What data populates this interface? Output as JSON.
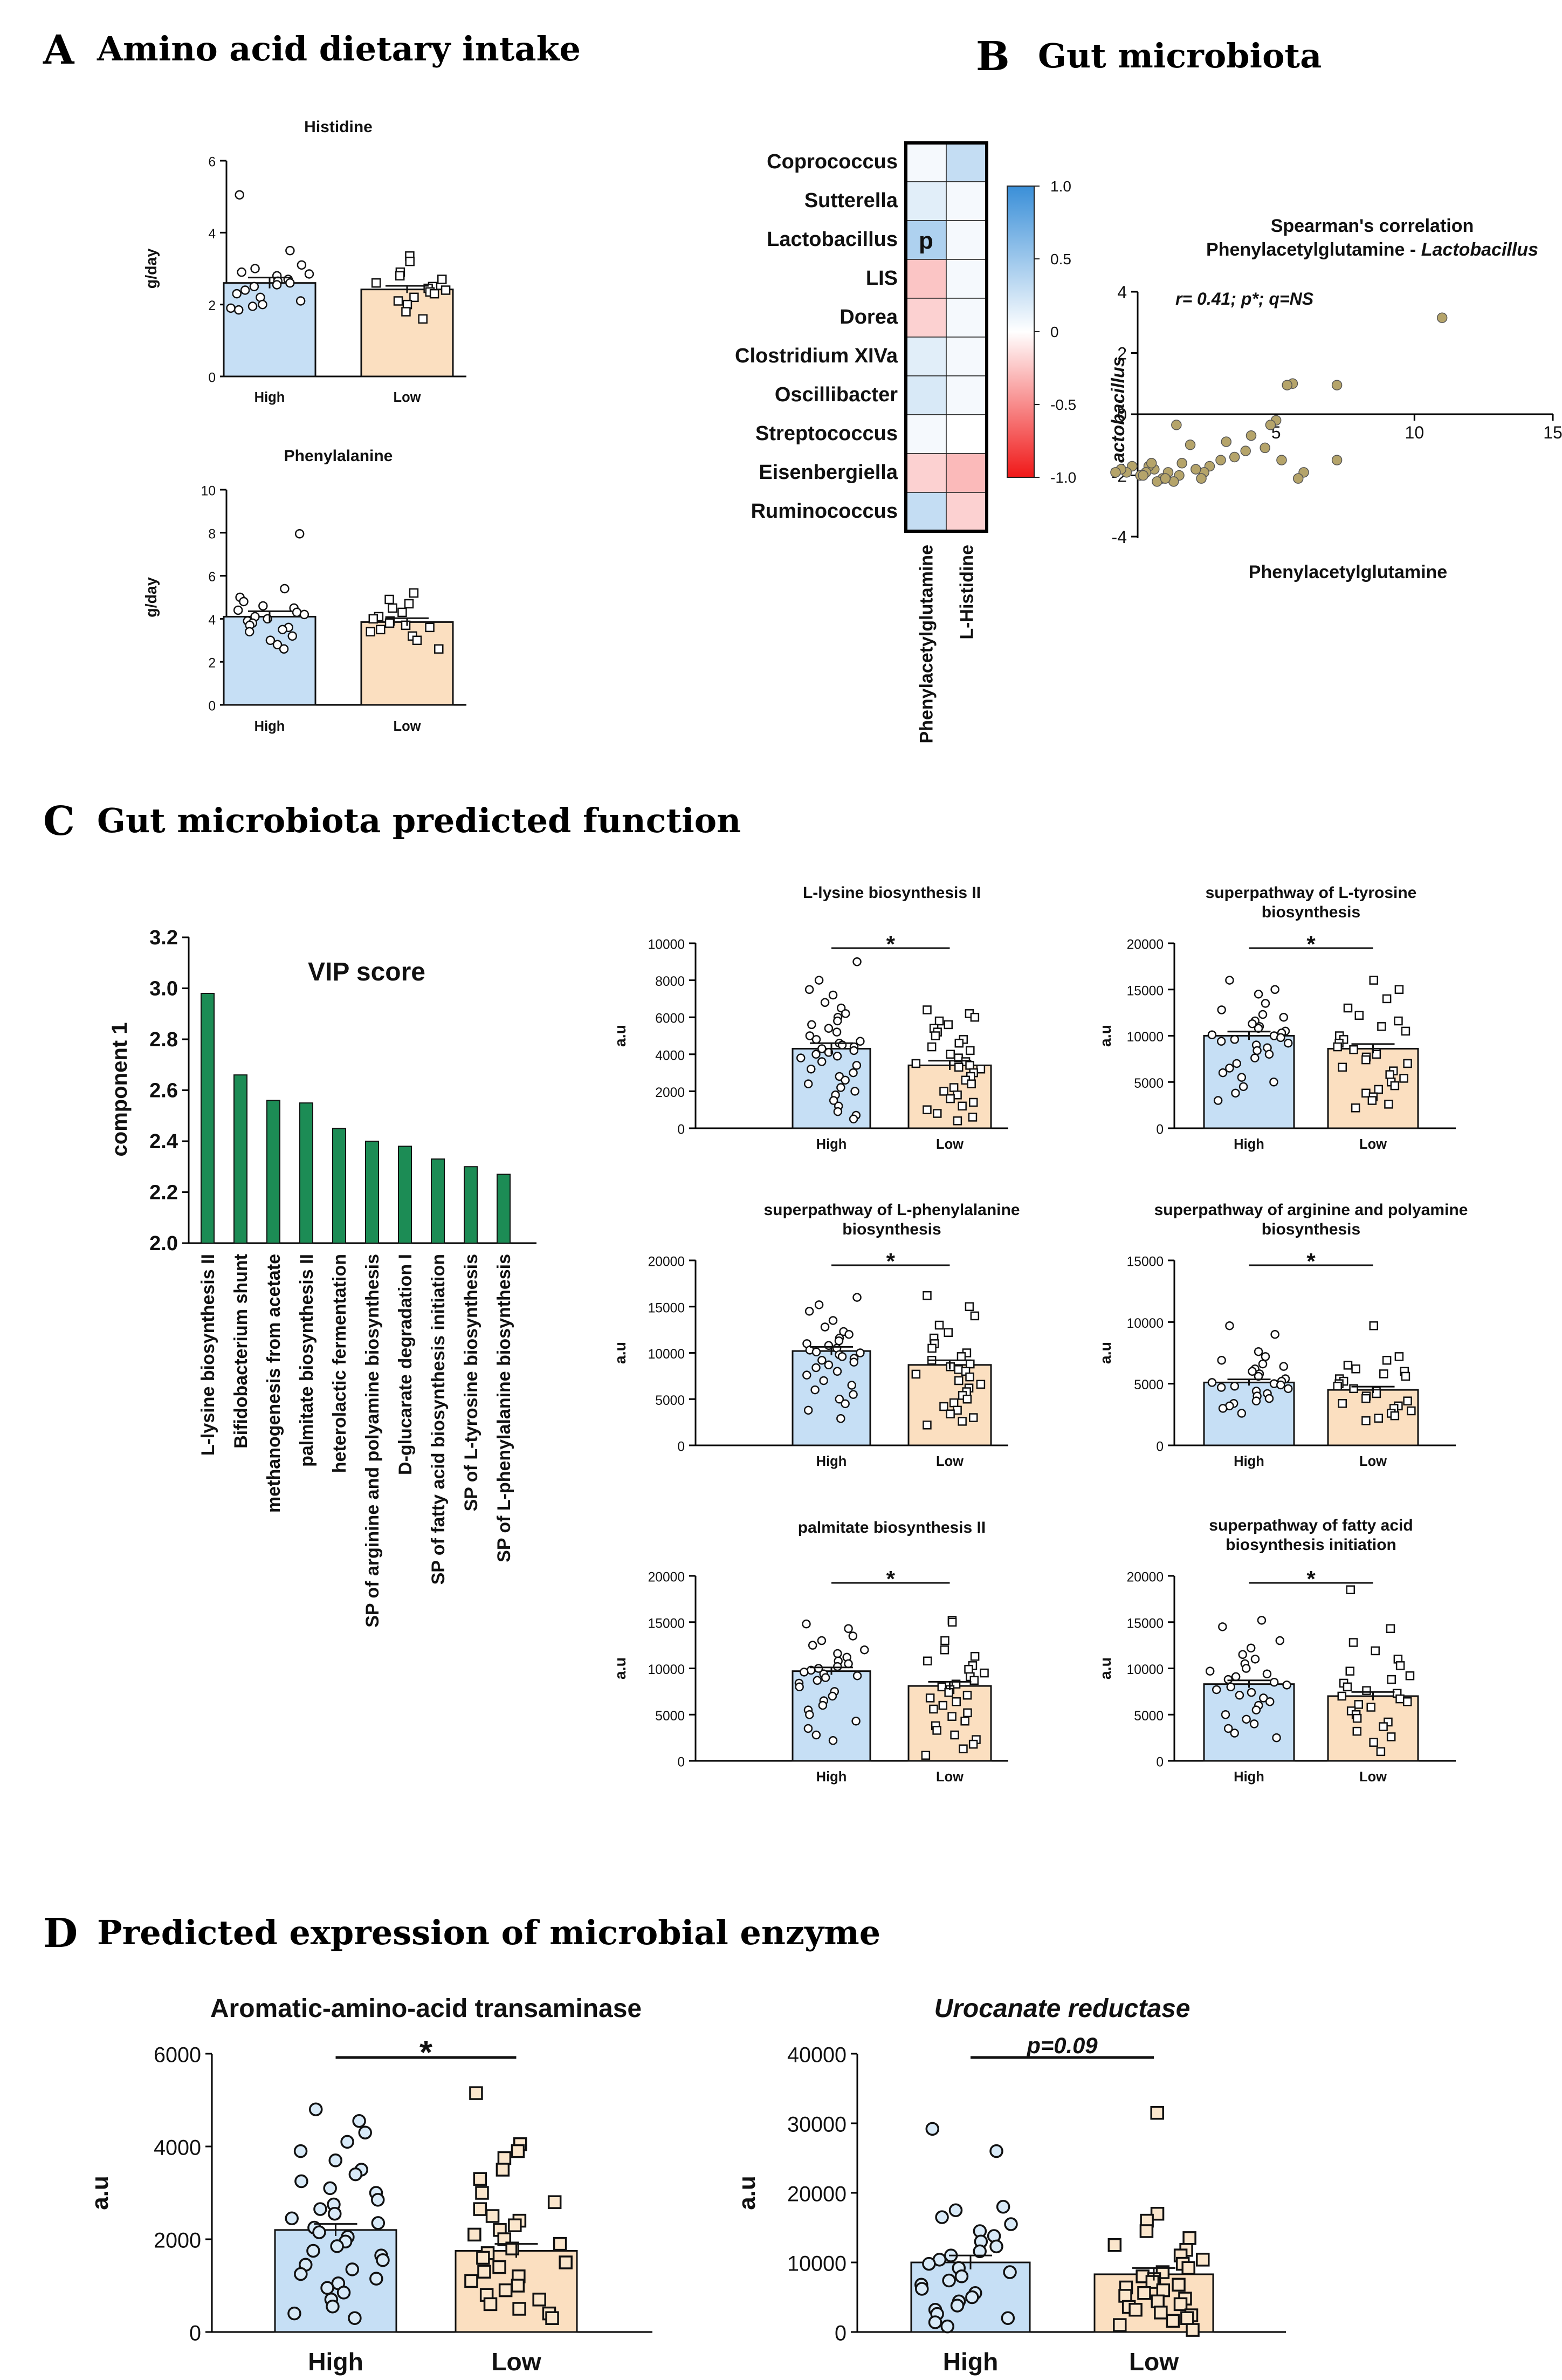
{
  "panels": {
    "A": {
      "letter": "A",
      "title": "Amino acid dietary intake"
    },
    "B": {
      "letter": "B",
      "title": "Gut microbiota"
    },
    "C": {
      "letter": "C",
      "title": "Gut microbiota predicted function"
    },
    "D": {
      "letter": "D",
      "title": "Predicted expression of microbial enzyme"
    }
  },
  "colors": {
    "high": "#c6dff5",
    "low": "#fbdfc0",
    "vip_bar": "#1c8c55",
    "scatter_point": "#b5a46a",
    "heat_pos": "#3a8fd8",
    "heat_neg": "#f01818"
  },
  "chart_data": [
    {
      "id": "histidine",
      "type": "bar",
      "title": "Histidine",
      "categories": [
        "High",
        "Low"
      ],
      "values": [
        2.6,
        2.42
      ],
      "sem": [
        0.15,
        0.1
      ],
      "ylabel": "g/day",
      "ylim": [
        0,
        6
      ],
      "yticks": [
        "0",
        "2",
        "4",
        "6"
      ],
      "points": {
        "High": [
          5.05,
          3.5,
          3.1,
          3.0,
          2.9,
          2.85,
          2.8,
          2.7,
          2.65,
          2.6,
          2.55,
          2.5,
          2.4,
          2.3,
          2.2,
          2.1,
          2.0,
          1.95,
          1.9,
          1.85
        ],
        "Low": [
          3.35,
          3.2,
          2.9,
          2.8,
          2.7,
          2.6,
          2.5,
          2.45,
          2.4,
          2.35,
          2.3,
          2.2,
          2.1,
          2.0,
          1.8,
          1.6
        ]
      }
    },
    {
      "id": "phenylalanine",
      "type": "bar",
      "title": "Phenylalanine",
      "categories": [
        "High",
        "Low"
      ],
      "values": [
        4.1,
        3.85
      ],
      "sem": [
        0.25,
        0.18
      ],
      "ylabel": "g/day",
      "ylim": [
        0,
        10
      ],
      "yticks": [
        "0",
        "2",
        "4",
        "6",
        "8",
        "10"
      ],
      "points": {
        "High": [
          7.95,
          5.4,
          5.0,
          4.8,
          4.6,
          4.5,
          4.4,
          4.3,
          4.2,
          4.1,
          4.0,
          3.9,
          3.8,
          3.7,
          3.6,
          3.5,
          3.4,
          3.2,
          3.0,
          2.8,
          2.6
        ],
        "Low": [
          5.2,
          4.9,
          4.7,
          4.5,
          4.3,
          4.1,
          4.0,
          3.9,
          3.8,
          3.7,
          3.6,
          3.5,
          3.4,
          3.2,
          3.0,
          2.6
        ]
      }
    },
    {
      "id": "heatmap",
      "type": "heatmap",
      "rows": [
        "Coprococcus",
        "Sutterella",
        "Lactobacillus",
        "LIS",
        "Dorea",
        "Clostridium  XIVa",
        "Oscillibacter",
        "Streptococcus",
        "Eisenbergiella",
        "Ruminococcus"
      ],
      "columns": [
        "Phenylacetylglutamine",
        "L-Histidine"
      ],
      "values": [
        [
          0.05,
          0.3
        ],
        [
          0.15,
          0.05
        ],
        [
          0.41,
          0.05
        ],
        [
          -0.25,
          0.05
        ],
        [
          -0.2,
          0.05
        ],
        [
          0.15,
          0.05
        ],
        [
          0.2,
          0.05
        ],
        [
          0.05,
          0.0
        ],
        [
          -0.2,
          -0.3
        ],
        [
          0.3,
          -0.2
        ]
      ],
      "annotation": {
        "row": 2,
        "col": 0,
        "text": "p"
      },
      "colorbar": {
        "range": [
          -1.0,
          1.0
        ],
        "ticks": [
          "1.0",
          "0.5",
          "0",
          "-0.5",
          "-1.0"
        ]
      }
    },
    {
      "id": "spearman",
      "type": "scatter",
      "title": "Spearman's correlation",
      "subtitle_prefix": "Phenylacetylglutamine - ",
      "subtitle_italic": "Lactobacillus",
      "annotation": "r= 0.41; p*; q=NS",
      "xlabel": "Phenylacetylglutamine",
      "ylabel": "Lactobacillus",
      "xlim": [
        -1,
        15
      ],
      "ylim": [
        -4,
        4
      ],
      "xticks": [
        "5",
        "10",
        "15"
      ],
      "yticks": [
        "4",
        "2",
        "0",
        "-2",
        "-4"
      ],
      "x": [
        11.0,
        7.2,
        5.6,
        5.4,
        5.0,
        4.8,
        7.2,
        6.0,
        5.8,
        5.2,
        4.6,
        4.1,
        3.9,
        3.5,
        3.2,
        3.0,
        2.6,
        2.4,
        2.3,
        2.1,
        1.9,
        1.6,
        1.5,
        1.3,
        1.1,
        0.9,
        0.7,
        0.6,
        0.4,
        0.3,
        0.1,
        -0.2,
        -0.4,
        -0.6,
        -0.8,
        0.5,
        1.0,
        1.4,
        0.2
      ],
      "y": [
        3.15,
        0.95,
        1.0,
        0.95,
        -0.2,
        -0.35,
        -1.5,
        -1.9,
        -2.1,
        -1.5,
        -1.1,
        -0.7,
        -1.2,
        -1.4,
        -0.9,
        -1.5,
        -1.7,
        -1.9,
        -2.1,
        -1.8,
        -1.0,
        -1.6,
        -2.0,
        -2.2,
        -1.9,
        -2.1,
        -2.2,
        -1.8,
        -1.7,
        -1.9,
        -2.0,
        -1.7,
        -1.9,
        -1.8,
        -1.9,
        -1.6,
        -2.1,
        -0.35,
        -2.0
      ]
    },
    {
      "id": "vip",
      "type": "bar",
      "title": "VIP score",
      "categories": [
        "L-lysine biosynthesis II",
        "Bifidobacterium shunt",
        "methanogenesis from acetate",
        "palmitate biosynthesis II",
        "heterolactic fermentation",
        "SP of arginine and polyamine biosynthesis",
        "D-glucarate degradation I",
        "SP of fatty acid biosynthesis initiation",
        "SP of L-tyrosine biosynthesis",
        "SP of L-phenylalanine biosynthesis"
      ],
      "values": [
        2.98,
        2.66,
        2.56,
        2.55,
        2.45,
        2.4,
        2.38,
        2.33,
        2.3,
        2.27
      ],
      "ylabel": "component 1",
      "ylim": [
        2.0,
        3.2
      ],
      "yticks": [
        "2.0",
        "2.2",
        "2.4",
        "2.6",
        "2.8",
        "3.0",
        "3.2"
      ]
    },
    {
      "id": "lysine",
      "type": "bar",
      "title_lines": [
        "L-lysine biosynthesis II"
      ],
      "significance": "*",
      "categories": [
        "High",
        "Low"
      ],
      "values": [
        4300,
        3400
      ],
      "sem": [
        300,
        250
      ],
      "ylabel": "a.u",
      "ylim": [
        0,
        10000
      ],
      "yticks": [
        "0",
        "2000",
        "4000",
        "6000",
        "8000",
        "10000"
      ],
      "points": {
        "High": [
          9000,
          8000,
          7500,
          7200,
          6800,
          6500,
          6200,
          6000,
          5800,
          5600,
          5400,
          5200,
          5000,
          4800,
          4700,
          4600,
          4500,
          4400,
          4300,
          4200,
          4100,
          4000,
          3900,
          3800,
          3600,
          3400,
          3200,
          3000,
          2800,
          2600,
          2400,
          2200,
          2000,
          1800,
          1500,
          1200,
          900,
          700,
          500
        ],
        "Low": [
          6400,
          6200,
          6000,
          5800,
          5600,
          5400,
          5200,
          5000,
          4800,
          4600,
          4400,
          4200,
          4000,
          3800,
          3600,
          3500,
          3400,
          3300,
          3200,
          3000,
          2800,
          2600,
          2400,
          2200,
          2000,
          1800,
          1600,
          1400,
          1200,
          1000,
          800,
          600,
          400
        ]
      }
    },
    {
      "id": "tyrosine",
      "type": "bar",
      "title_lines": [
        "superpathway of L-tyrosine",
        "biosynthesis"
      ],
      "significance": "*",
      "categories": [
        "High",
        "Low"
      ],
      "values": [
        10000,
        8600
      ],
      "sem": [
        450,
        500
      ],
      "ylabel": "a.u",
      "ylim": [
        0,
        20000
      ],
      "yticks": [
        "0",
        "5000",
        "10000",
        "15000",
        "20000"
      ],
      "points": {
        "High": [
          16000,
          15000,
          14500,
          13500,
          12800,
          12300,
          12000,
          11600,
          11300,
          11000,
          10800,
          10500,
          10300,
          10100,
          10000,
          9800,
          9600,
          9400,
          9200,
          9000,
          8700,
          8400,
          8000,
          7600,
          7000,
          6500,
          6000,
          5500,
          5000,
          4500,
          3800,
          3000
        ],
        "Low": [
          16000,
          15000,
          14000,
          13000,
          12200,
          11600,
          11000,
          10500,
          10000,
          9600,
          9200,
          8800,
          8500,
          8200,
          8000,
          7700,
          7400,
          7000,
          6600,
          6200,
          5800,
          5400,
          5000,
          4600,
          4200,
          3800,
          3400,
          3000,
          2600,
          2200
        ]
      }
    },
    {
      "id": "phe_sp",
      "type": "bar",
      "title_lines": [
        "superpathway of L-phenylalanine",
        "biosynthesis"
      ],
      "significance": "*",
      "categories": [
        "High",
        "Low"
      ],
      "values": [
        10200,
        8700
      ],
      "sem": [
        450,
        500
      ],
      "ylabel": "a.u",
      "ylim": [
        0,
        20000
      ],
      "yticks": [
        "0",
        "5000",
        "10000",
        "15000",
        "20000"
      ],
      "points": {
        "High": [
          16000,
          15200,
          14500,
          13500,
          12800,
          12300,
          12000,
          11600,
          11300,
          11000,
          10800,
          10500,
          10300,
          10100,
          10000,
          9800,
          9600,
          9400,
          9200,
          9000,
          8700,
          8400,
          8000,
          7600,
          7000,
          6500,
          6000,
          5500,
          5000,
          4500,
          3800,
          2900
        ],
        "Low": [
          16200,
          15000,
          14000,
          13000,
          12200,
          11600,
          11000,
          10500,
          10000,
          9600,
          9200,
          8800,
          8500,
          8200,
          8000,
          7700,
          7400,
          7000,
          6600,
          6200,
          5800,
          5400,
          5000,
          4600,
          4200,
          3800,
          3400,
          3000,
          2600,
          2200
        ]
      }
    },
    {
      "id": "arginine",
      "type": "bar",
      "title_lines": [
        "superpathway of arginine and polyamine",
        "biosynthesis"
      ],
      "significance": "*",
      "categories": [
        "High",
        "Low"
      ],
      "values": [
        5100,
        4500
      ],
      "sem": [
        250,
        260
      ],
      "ylabel": "a.u",
      "ylim": [
        0,
        15000
      ],
      "yticks": [
        "0",
        "5000",
        "10000",
        "15000"
      ],
      "points": {
        "High": [
          9700,
          9000,
          7600,
          7200,
          6900,
          6600,
          6400,
          6200,
          6000,
          5800,
          5600,
          5400,
          5200,
          5100,
          5000,
          4900,
          4800,
          4700,
          4600,
          4400,
          4200,
          4000,
          3800,
          3600,
          3400,
          3200,
          3000,
          2600
        ],
        "Low": [
          9700,
          7200,
          6900,
          6500,
          6200,
          6000,
          5800,
          5600,
          5400,
          5200,
          5000,
          4800,
          4600,
          4400,
          4200,
          4000,
          3800,
          3600,
          3400,
          3200,
          3000,
          2800,
          2600,
          2400,
          2200,
          2000
        ]
      }
    },
    {
      "id": "palmitate",
      "type": "bar",
      "title_lines": [
        "palmitate biosynthesis II"
      ],
      "significance": "*",
      "categories": [
        "High",
        "Low"
      ],
      "values": [
        9700,
        8100
      ],
      "sem": [
        400,
        450
      ],
      "ylabel": "a.u",
      "ylim": [
        0,
        20000
      ],
      "yticks": [
        "0",
        "5000",
        "10000",
        "15000",
        "20000"
      ],
      "points": {
        "High": [
          14800,
          14300,
          13500,
          13000,
          12500,
          12000,
          11600,
          11200,
          10800,
          10500,
          10200,
          10000,
          9800,
          9600,
          9400,
          9200,
          9000,
          8700,
          8400,
          8000,
          7500,
          7000,
          6500,
          6000,
          5500,
          5000,
          4300,
          3500,
          2800,
          2200
        ],
        "Low": [
          15200,
          15000,
          13000,
          12000,
          11300,
          10800,
          10300,
          9900,
          9500,
          9100,
          8700,
          8300,
          8000,
          7700,
          7400,
          7100,
          6800,
          6400,
          6000,
          5600,
          5200,
          4800,
          4300,
          3800,
          3300,
          2800,
          2300,
          1800,
          1300,
          600
        ]
      }
    },
    {
      "id": "fatty",
      "type": "bar",
      "title_lines": [
        "superpathway of fatty acid",
        "biosynthesis initiation"
      ],
      "significance": "*",
      "categories": [
        "High",
        "Low"
      ],
      "values": [
        8300,
        7000
      ],
      "sem": [
        400,
        450
      ],
      "ylabel": "a.u",
      "ylim": [
        0,
        20000
      ],
      "yticks": [
        "0",
        "5000",
        "10000",
        "15000",
        "20000"
      ],
      "points": {
        "High": [
          15200,
          14500,
          13000,
          12200,
          11500,
          11000,
          10500,
          10000,
          9700,
          9400,
          9100,
          8800,
          8500,
          8200,
          8000,
          7700,
          7400,
          7100,
          6800,
          6400,
          6000,
          5500,
          5000,
          4500,
          4000,
          3500,
          3000,
          2500
        ],
        "Low": [
          18500,
          14300,
          12800,
          11900,
          11000,
          10300,
          9700,
          9200,
          8800,
          8400,
          8000,
          7600,
          7300,
          7000,
          6700,
          6400,
          6100,
          5800,
          5400,
          5000,
          4600,
          4200,
          3700,
          3200,
          2600,
          2000,
          1000
        ]
      }
    },
    {
      "id": "aat",
      "type": "bar",
      "title": "Aromatic-amino-acid transaminase",
      "significance": "*",
      "categories": [
        "High",
        "Low"
      ],
      "values": [
        2200,
        1750
      ],
      "sem": [
        130,
        150
      ],
      "ylabel": "a.u",
      "ylim": [
        0,
        6000
      ],
      "yticks": [
        "0",
        "2000",
        "4000",
        "6000"
      ],
      "points": {
        "High": [
          4800,
          4550,
          4300,
          4100,
          3900,
          3700,
          3500,
          3400,
          3250,
          3100,
          3000,
          2850,
          2750,
          2650,
          2550,
          2450,
          2350,
          2250,
          2150,
          2050,
          1950,
          1850,
          1750,
          1650,
          1550,
          1450,
          1350,
          1250,
          1150,
          1050,
          950,
          850,
          700,
          550,
          400,
          300
        ],
        "Low": [
          5150,
          4050,
          3900,
          3750,
          3500,
          3300,
          3000,
          2800,
          2650,
          2500,
          2400,
          2300,
          2200,
          2100,
          2000,
          1900,
          1800,
          1700,
          1600,
          1500,
          1400,
          1300,
          1200,
          1100,
          1000,
          900,
          800,
          700,
          600,
          500,
          400,
          300
        ]
      }
    },
    {
      "id": "urocanate",
      "type": "bar",
      "title": "Urocanate reductase",
      "significance": "p=0.09",
      "categories": [
        "High",
        "Low"
      ],
      "values": [
        10000,
        8300
      ],
      "sem": [
        1000,
        900
      ],
      "ylabel": "a.u",
      "ylim": [
        0,
        40000
      ],
      "yticks": [
        "0",
        "10000",
        "20000",
        "30000",
        "40000"
      ],
      "points": {
        "High": [
          29200,
          26000,
          18000,
          17500,
          16500,
          15500,
          14500,
          13800,
          13000,
          12300,
          11600,
          11000,
          10400,
          9800,
          9200,
          8600,
          8000,
          7400,
          6800,
          6200,
          5600,
          5000,
          4400,
          3800,
          3200,
          2600,
          2000,
          1400,
          800
        ],
        "Low": [
          31500,
          17000,
          16000,
          14500,
          13500,
          12500,
          11800,
          11000,
          10400,
          9800,
          9200,
          8600,
          8000,
          7600,
          7200,
          6800,
          6400,
          6000,
          5600,
          5200,
          4800,
          4400,
          4000,
          3600,
          3200,
          2800,
          2400,
          2000,
          1600,
          1000,
          300
        ]
      }
    }
  ]
}
